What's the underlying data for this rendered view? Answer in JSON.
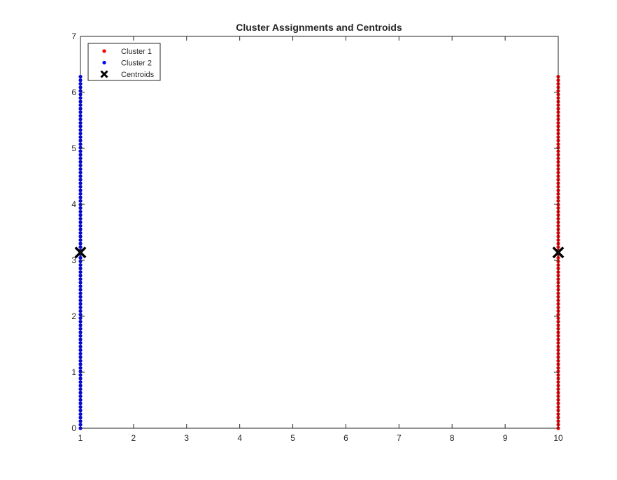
{
  "chart_data": {
    "type": "scatter",
    "title": "Cluster Assignments and Centroids",
    "xlabel": "",
    "ylabel": "",
    "xlim": [
      1,
      10
    ],
    "ylim": [
      0,
      7
    ],
    "xticks": [
      1,
      2,
      3,
      4,
      5,
      6,
      7,
      8,
      9,
      10
    ],
    "yticks": [
      0,
      1,
      2,
      3,
      4,
      5,
      6,
      7
    ],
    "grid": false,
    "legend_position": "top-left",
    "series": [
      {
        "name": "Cluster 1",
        "marker": "dot",
        "color": "#ff0000",
        "points": {
          "x": 10,
          "y_from": 0,
          "y_to": 6.28,
          "count": 100
        }
      },
      {
        "name": "Cluster 2",
        "marker": "dot",
        "color": "#0000ff",
        "points": {
          "x": 1,
          "y_from": 0,
          "y_to": 6.28,
          "count": 100
        }
      },
      {
        "name": "Centroids",
        "marker": "x",
        "color": "#000000",
        "x": [
          1,
          10
        ],
        "y": [
          3.14,
          3.14
        ]
      }
    ]
  }
}
